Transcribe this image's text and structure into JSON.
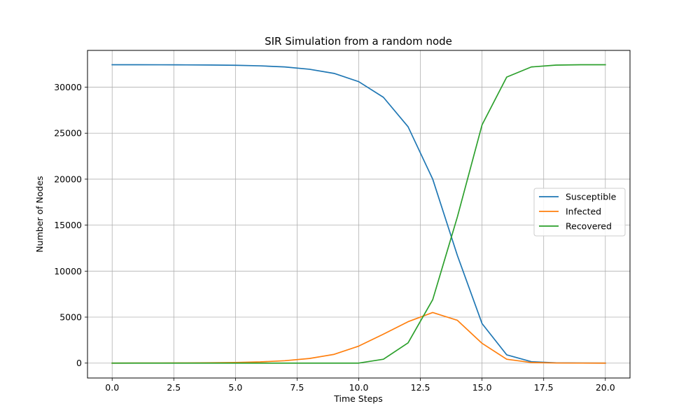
{
  "chart_data": {
    "type": "line",
    "title": "SIR Simulation from a random node",
    "xlabel": "Time Steps",
    "ylabel": "Number of Nodes",
    "xlim": [
      -1,
      21
    ],
    "ylim": [
      -1620,
      34000
    ],
    "xticks": [
      0.0,
      2.5,
      5.0,
      7.5,
      10.0,
      12.5,
      15.0,
      17.5,
      20.0
    ],
    "xtick_labels": [
      "0.0",
      "2.5",
      "5.0",
      "7.5",
      "10.0",
      "12.5",
      "15.0",
      "17.5",
      "20.0"
    ],
    "yticks": [
      0,
      5000,
      10000,
      15000,
      20000,
      25000,
      30000
    ],
    "ytick_labels": [
      "0",
      "5000",
      "10000",
      "15000",
      "20000",
      "25000",
      "30000"
    ],
    "grid": true,
    "legend_position": "center-right",
    "x": [
      0,
      1,
      2,
      3,
      4,
      5,
      6,
      7,
      8,
      9,
      10,
      11,
      12,
      13,
      14,
      15,
      16,
      17,
      18,
      19,
      20
    ],
    "series": [
      {
        "name": "Susceptible",
        "color": "#1f77b4",
        "values": [
          32440,
          32440,
          32435,
          32425,
          32410,
          32380,
          32320,
          32200,
          31950,
          31500,
          30600,
          28900,
          25700,
          20000,
          11700,
          4300,
          900,
          150,
          30,
          5,
          0
        ]
      },
      {
        "name": "Infected",
        "color": "#ff7f0e",
        "values": [
          0,
          5,
          10,
          20,
          40,
          70,
          130,
          260,
          500,
          950,
          1850,
          3150,
          4500,
          5500,
          4650,
          2150,
          420,
          60,
          10,
          2,
          0
        ]
      },
      {
        "name": "Recovered",
        "color": "#2ca02c",
        "values": [
          0,
          0,
          0,
          0,
          0,
          0,
          0,
          0,
          0,
          0,
          0,
          420,
          2200,
          6900,
          15900,
          25900,
          31100,
          32200,
          32400,
          32440,
          32440
        ]
      }
    ]
  }
}
